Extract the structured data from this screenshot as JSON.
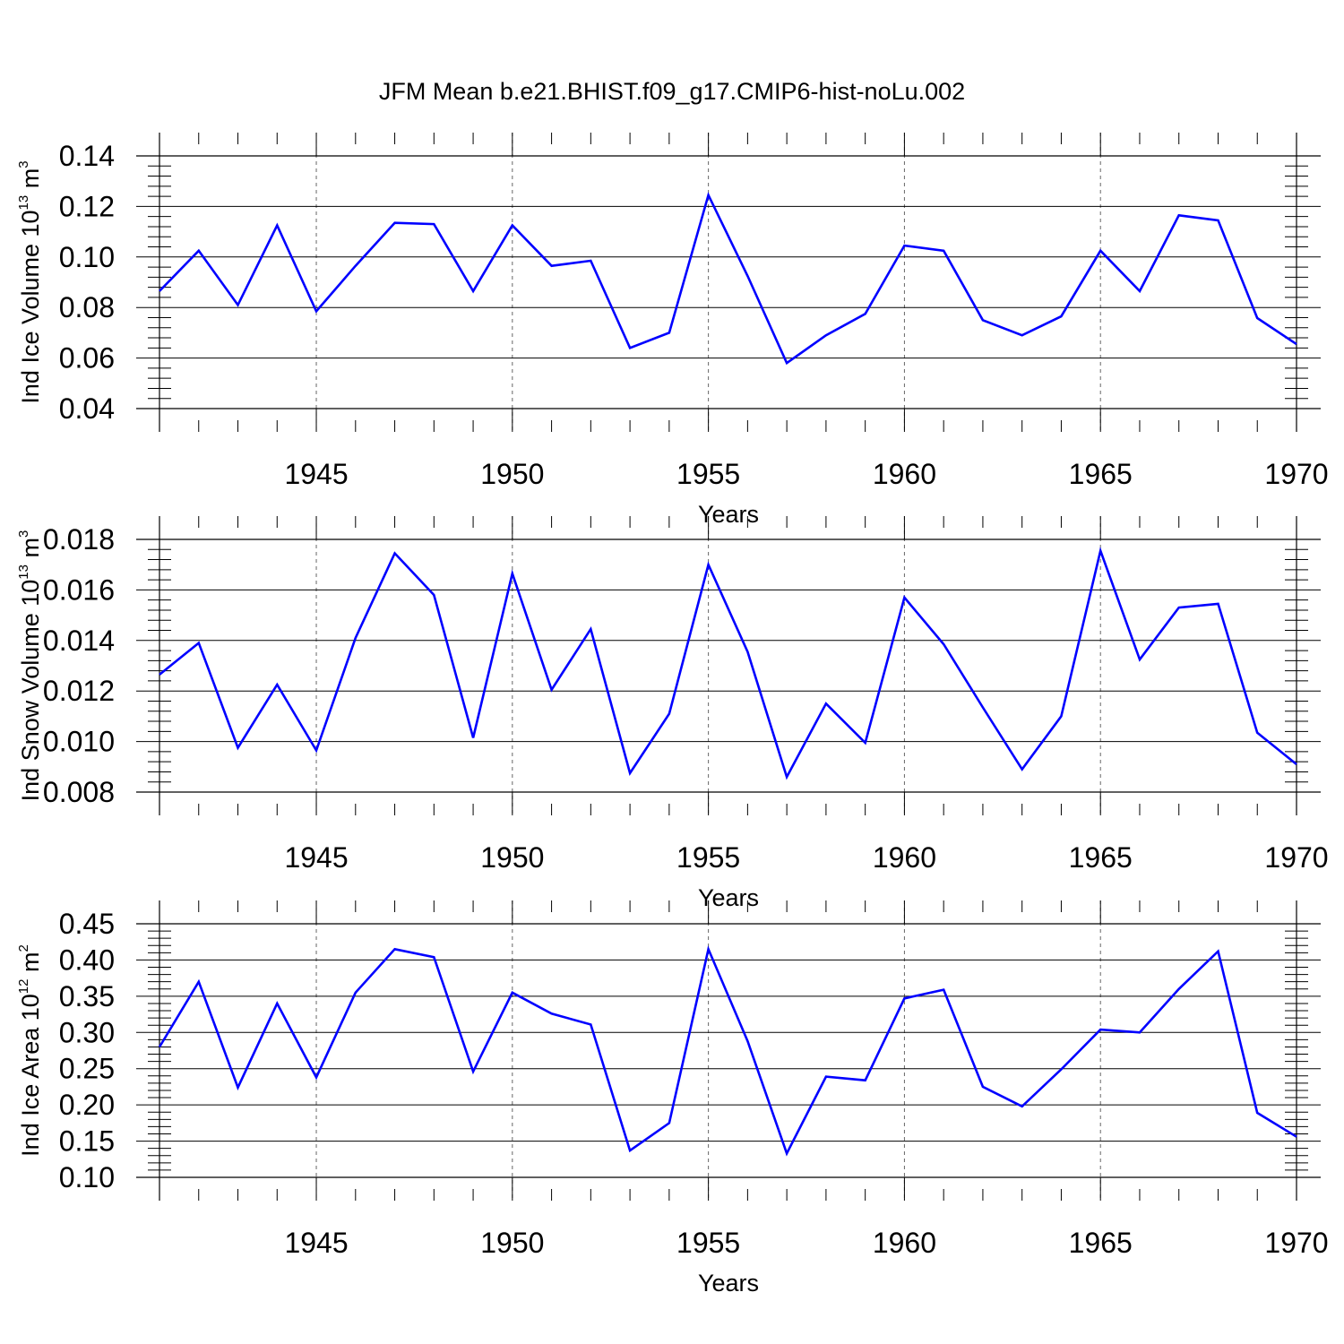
{
  "title": "JFM Mean b.e21.BHIST.f09_g17.CMIP6-hist-noLu.002",
  "chart_data": [
    {
      "type": "line",
      "ylabel": {
        "text": "Ind Ice Volume 10",
        "exp": "13",
        "unit": " m",
        "unit_exp": "3"
      },
      "xlabel": "Years",
      "xlim": [
        1941,
        1970
      ],
      "ylim": [
        0.04,
        0.14
      ],
      "yticks": [
        "0.04",
        "0.06",
        "0.08",
        "0.10",
        "0.12",
        "0.14"
      ],
      "xticks": [
        "1945",
        "1950",
        "1955",
        "1960",
        "1965",
        "1970"
      ],
      "grid": "dashed vertical at labeled years",
      "line_color": "#0000ff",
      "x": [
        1941,
        1942,
        1943,
        1944,
        1945,
        1946,
        1947,
        1948,
        1949,
        1950,
        1951,
        1952,
        1953,
        1954,
        1955,
        1956,
        1957,
        1958,
        1959,
        1960,
        1961,
        1962,
        1963,
        1964,
        1965,
        1966,
        1967,
        1968,
        1969,
        1970
      ],
      "values": [
        0.0865,
        0.1025,
        0.081,
        0.1125,
        0.0785,
        0.0965,
        0.1135,
        0.113,
        0.0865,
        0.1125,
        0.0965,
        0.0985,
        0.064,
        0.07,
        0.1245,
        0.0925,
        0.058,
        0.069,
        0.0775,
        0.1045,
        0.1025,
        0.075,
        0.069,
        0.0765,
        0.1025,
        0.0865,
        0.1165,
        0.1145,
        0.0758,
        0.0655
      ]
    },
    {
      "type": "line",
      "ylabel": {
        "text": "Ind Snow Volume 10",
        "exp": "13",
        "unit": " m",
        "unit_exp": "3"
      },
      "xlabel": "Years",
      "xlim": [
        1941,
        1970
      ],
      "ylim": [
        0.008,
        0.018
      ],
      "yticks": [
        "0.008",
        "0.010",
        "0.012",
        "0.014",
        "0.016",
        "0.018"
      ],
      "xticks": [
        "1945",
        "1950",
        "1955",
        "1960",
        "1965",
        "1970"
      ],
      "grid": "dashed vertical at labeled years",
      "line_color": "#0000ff",
      "x": [
        1941,
        1942,
        1943,
        1944,
        1945,
        1946,
        1947,
        1948,
        1949,
        1950,
        1951,
        1952,
        1953,
        1954,
        1955,
        1956,
        1957,
        1958,
        1959,
        1960,
        1961,
        1962,
        1963,
        1964,
        1965,
        1966,
        1967,
        1968,
        1969,
        1970
      ],
      "values": [
        0.01265,
        0.0139,
        0.00975,
        0.01225,
        0.00965,
        0.0141,
        0.01745,
        0.0158,
        0.01015,
        0.01665,
        0.01205,
        0.01445,
        0.00875,
        0.0111,
        0.017,
        0.01355,
        0.0086,
        0.0115,
        0.00995,
        0.0157,
        0.01385,
        0.01135,
        0.0089,
        0.011,
        0.01755,
        0.01325,
        0.0153,
        0.01545,
        0.01035,
        0.0091
      ]
    },
    {
      "type": "line",
      "ylabel": {
        "text": "Ind Ice Area 10",
        "exp": "12",
        "unit": " m",
        "unit_exp": "2"
      },
      "xlabel": "Years",
      "xlim": [
        1941,
        1970
      ],
      "ylim": [
        0.1,
        0.45
      ],
      "yticks": [
        "0.10",
        "0.15",
        "0.20",
        "0.25",
        "0.30",
        "0.35",
        "0.40",
        "0.45"
      ],
      "xticks": [
        "1945",
        "1950",
        "1955",
        "1960",
        "1965",
        "1970"
      ],
      "grid": "dashed vertical at labeled years",
      "line_color": "#0000ff",
      "x": [
        1941,
        1942,
        1943,
        1944,
        1945,
        1946,
        1947,
        1948,
        1949,
        1950,
        1951,
        1952,
        1953,
        1954,
        1955,
        1956,
        1957,
        1958,
        1959,
        1960,
        1961,
        1962,
        1963,
        1964,
        1965,
        1966,
        1967,
        1968,
        1969,
        1970
      ],
      "values": [
        0.28,
        0.37,
        0.224,
        0.34,
        0.238,
        0.355,
        0.415,
        0.404,
        0.246,
        0.355,
        0.326,
        0.311,
        0.137,
        0.175,
        0.415,
        0.288,
        0.133,
        0.239,
        0.234,
        0.347,
        0.359,
        0.225,
        0.198,
        0.249,
        0.304,
        0.3,
        0.36,
        0.412,
        0.189,
        0.156
      ]
    }
  ]
}
